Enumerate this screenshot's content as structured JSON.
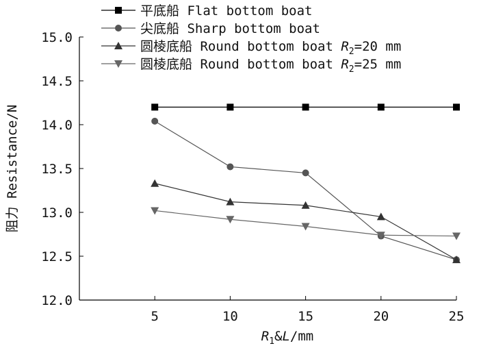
{
  "chart_data": {
    "type": "line",
    "x": [
      5,
      10,
      15,
      20,
      25
    ],
    "xlim": [
      0,
      25
    ],
    "ylim": [
      12.0,
      15.0
    ],
    "x_ticks": [
      "5",
      "10",
      "15",
      "20",
      "25"
    ],
    "y_ticks": [
      "12.0",
      "12.5",
      "13.0",
      "13.5",
      "14.0",
      "14.5",
      "15.0"
    ],
    "xlabel": {
      "pre": "R",
      "sub": "1",
      "mid": "&",
      "italic2": "L",
      "post": "/mm"
    },
    "ylabel": "阻力 Resistance/N",
    "grid": false,
    "legend_position": "top",
    "series": [
      {
        "name": "平底船 Flat bottom boat",
        "name_sub": "",
        "name_post": "",
        "marker": "square",
        "color": "#000000",
        "values": [
          14.2,
          14.2,
          14.2,
          14.2,
          14.2
        ]
      },
      {
        "name": "尖底船 Sharp bottom boat",
        "name_sub": "",
        "name_post": "",
        "marker": "circle",
        "color": "#555555",
        "values": [
          14.04,
          13.52,
          13.45,
          12.73,
          12.46
        ]
      },
      {
        "name": "圆棱底船 Round bottom boat R",
        "name_sub": "2",
        "name_post": "=20 mm",
        "marker": "triangle-up",
        "color": "#333333",
        "values": [
          13.33,
          13.12,
          13.08,
          12.95,
          12.46
        ]
      },
      {
        "name": "圆棱底船 Round bottom boat R",
        "name_sub": "2",
        "name_post": "=25 mm",
        "marker": "triangle-down",
        "color": "#666666",
        "values": [
          13.02,
          12.92,
          12.84,
          12.74,
          12.73
        ]
      }
    ]
  }
}
